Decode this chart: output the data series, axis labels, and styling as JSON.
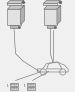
{
  "bg_color": "#f0f0f0",
  "title_left": "( L/T )",
  "title_right": "( R/T )",
  "lc": "#666666",
  "lc_thin": "#888888",
  "face_top": "#c8c8c8",
  "face_front": "#e2e2e2",
  "face_side": "#b0b0b0",
  "face_conn": "#b8b8b8",
  "car_lc": "#888888",
  "text_color": "#333333"
}
